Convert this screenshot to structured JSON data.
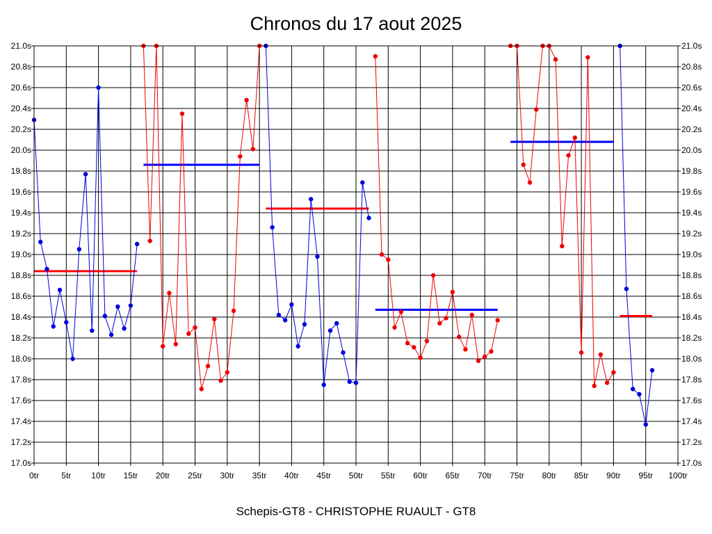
{
  "chart_data": {
    "type": "line",
    "title": "Chronos du 17 aout 2025",
    "caption": "Schepis-GT8 - CHRISTOPHE RUAULT - GT8",
    "ylim": [
      17.0,
      21.0
    ],
    "xlim": [
      0,
      100
    ],
    "y_ticks": [
      "17.0s",
      "17.2s",
      "17.4s",
      "17.6s",
      "17.8s",
      "18.0s",
      "18.2s",
      "18.4s",
      "18.6s",
      "18.8s",
      "19.0s",
      "19.2s",
      "19.4s",
      "19.6s",
      "19.8s",
      "20.0s",
      "20.2s",
      "20.4s",
      "20.6s",
      "20.8s",
      "21.0s"
    ],
    "x_ticks": [
      "0tr",
      "5tr",
      "10tr",
      "15tr",
      "20tr",
      "25tr",
      "30tr",
      "35tr",
      "40tr",
      "45tr",
      "50tr",
      "55tr",
      "60tr",
      "65tr",
      "70tr",
      "75tr",
      "80tr",
      "85tr",
      "90tr",
      "95tr",
      "100tr"
    ],
    "grid": true,
    "colors": {
      "blue": "#0000dd",
      "red": "#ee0000",
      "line_blue": "#0000ff",
      "line_red": "#ff0000"
    },
    "series": [
      {
        "color": "blue",
        "x": [
          0,
          1,
          2,
          3,
          4,
          5,
          6,
          7,
          8,
          9,
          10,
          11,
          12,
          13,
          14,
          15,
          16
        ],
        "y": [
          20.29,
          19.12,
          18.86,
          18.31,
          18.66,
          18.35,
          18.0,
          19.05,
          19.77,
          18.27,
          20.6,
          18.41,
          18.23,
          18.5,
          18.29,
          18.51,
          19.1
        ]
      },
      {
        "color": "red",
        "x": [
          17,
          18,
          19,
          20,
          21,
          22,
          23,
          24,
          25,
          26,
          27,
          28,
          29,
          30,
          31,
          32,
          33,
          34,
          35
        ],
        "y": [
          21.0,
          19.13,
          21.0,
          18.12,
          18.63,
          18.14,
          20.35,
          18.24,
          18.3,
          17.71,
          17.93,
          18.38,
          17.79,
          17.87,
          18.46,
          19.94,
          20.48,
          20.01,
          21.0
        ]
      },
      {
        "color": "blue",
        "x": [
          36,
          37,
          38,
          39,
          40,
          41,
          42,
          43,
          44,
          45,
          46,
          47,
          48,
          49,
          50,
          51,
          52
        ],
        "y": [
          21.0,
          19.26,
          18.42,
          18.37,
          18.52,
          18.12,
          18.33,
          19.53,
          18.98,
          17.75,
          18.27,
          18.34,
          18.06,
          17.78,
          17.77,
          19.69,
          19.35
        ]
      },
      {
        "color": "red",
        "x": [
          53,
          54,
          55,
          56,
          57,
          58,
          59,
          60,
          61,
          62,
          63,
          64,
          65,
          66,
          67,
          68,
          69,
          70,
          71,
          72
        ],
        "y": [
          20.9,
          19.0,
          18.95,
          18.3,
          18.45,
          18.15,
          18.11,
          18.01,
          18.17,
          18.8,
          18.34,
          18.39,
          18.64,
          18.21,
          18.09,
          18.42,
          17.98,
          18.02,
          18.07,
          18.37
        ]
      },
      {
        "color": "red",
        "x": [
          74,
          75,
          76,
          77,
          78,
          79,
          80,
          81,
          82,
          83,
          84,
          85,
          86,
          87,
          88,
          89,
          90
        ],
        "y": [
          21.0,
          21.0,
          19.86,
          19.69,
          20.39,
          21.0,
          21.0,
          20.87,
          19.08,
          19.95,
          20.12,
          18.06,
          20.89,
          17.74,
          18.04,
          17.77,
          17.87
        ]
      },
      {
        "color": "blue",
        "x": [
          91,
          92,
          93,
          94,
          95,
          96
        ],
        "y": [
          21.0,
          18.67,
          17.71,
          17.66,
          17.37,
          17.89
        ]
      }
    ],
    "averages": [
      {
        "color": "red",
        "x": [
          0,
          16
        ],
        "y": 18.84
      },
      {
        "color": "blue",
        "x": [
          17,
          35
        ],
        "y": 19.86
      },
      {
        "color": "red",
        "x": [
          36,
          52
        ],
        "y": 19.44
      },
      {
        "color": "blue",
        "x": [
          53,
          72
        ],
        "y": 18.47
      },
      {
        "color": "blue",
        "x": [
          74,
          90
        ],
        "y": 20.08
      },
      {
        "color": "red",
        "x": [
          91,
          96
        ],
        "y": 18.41
      }
    ]
  }
}
